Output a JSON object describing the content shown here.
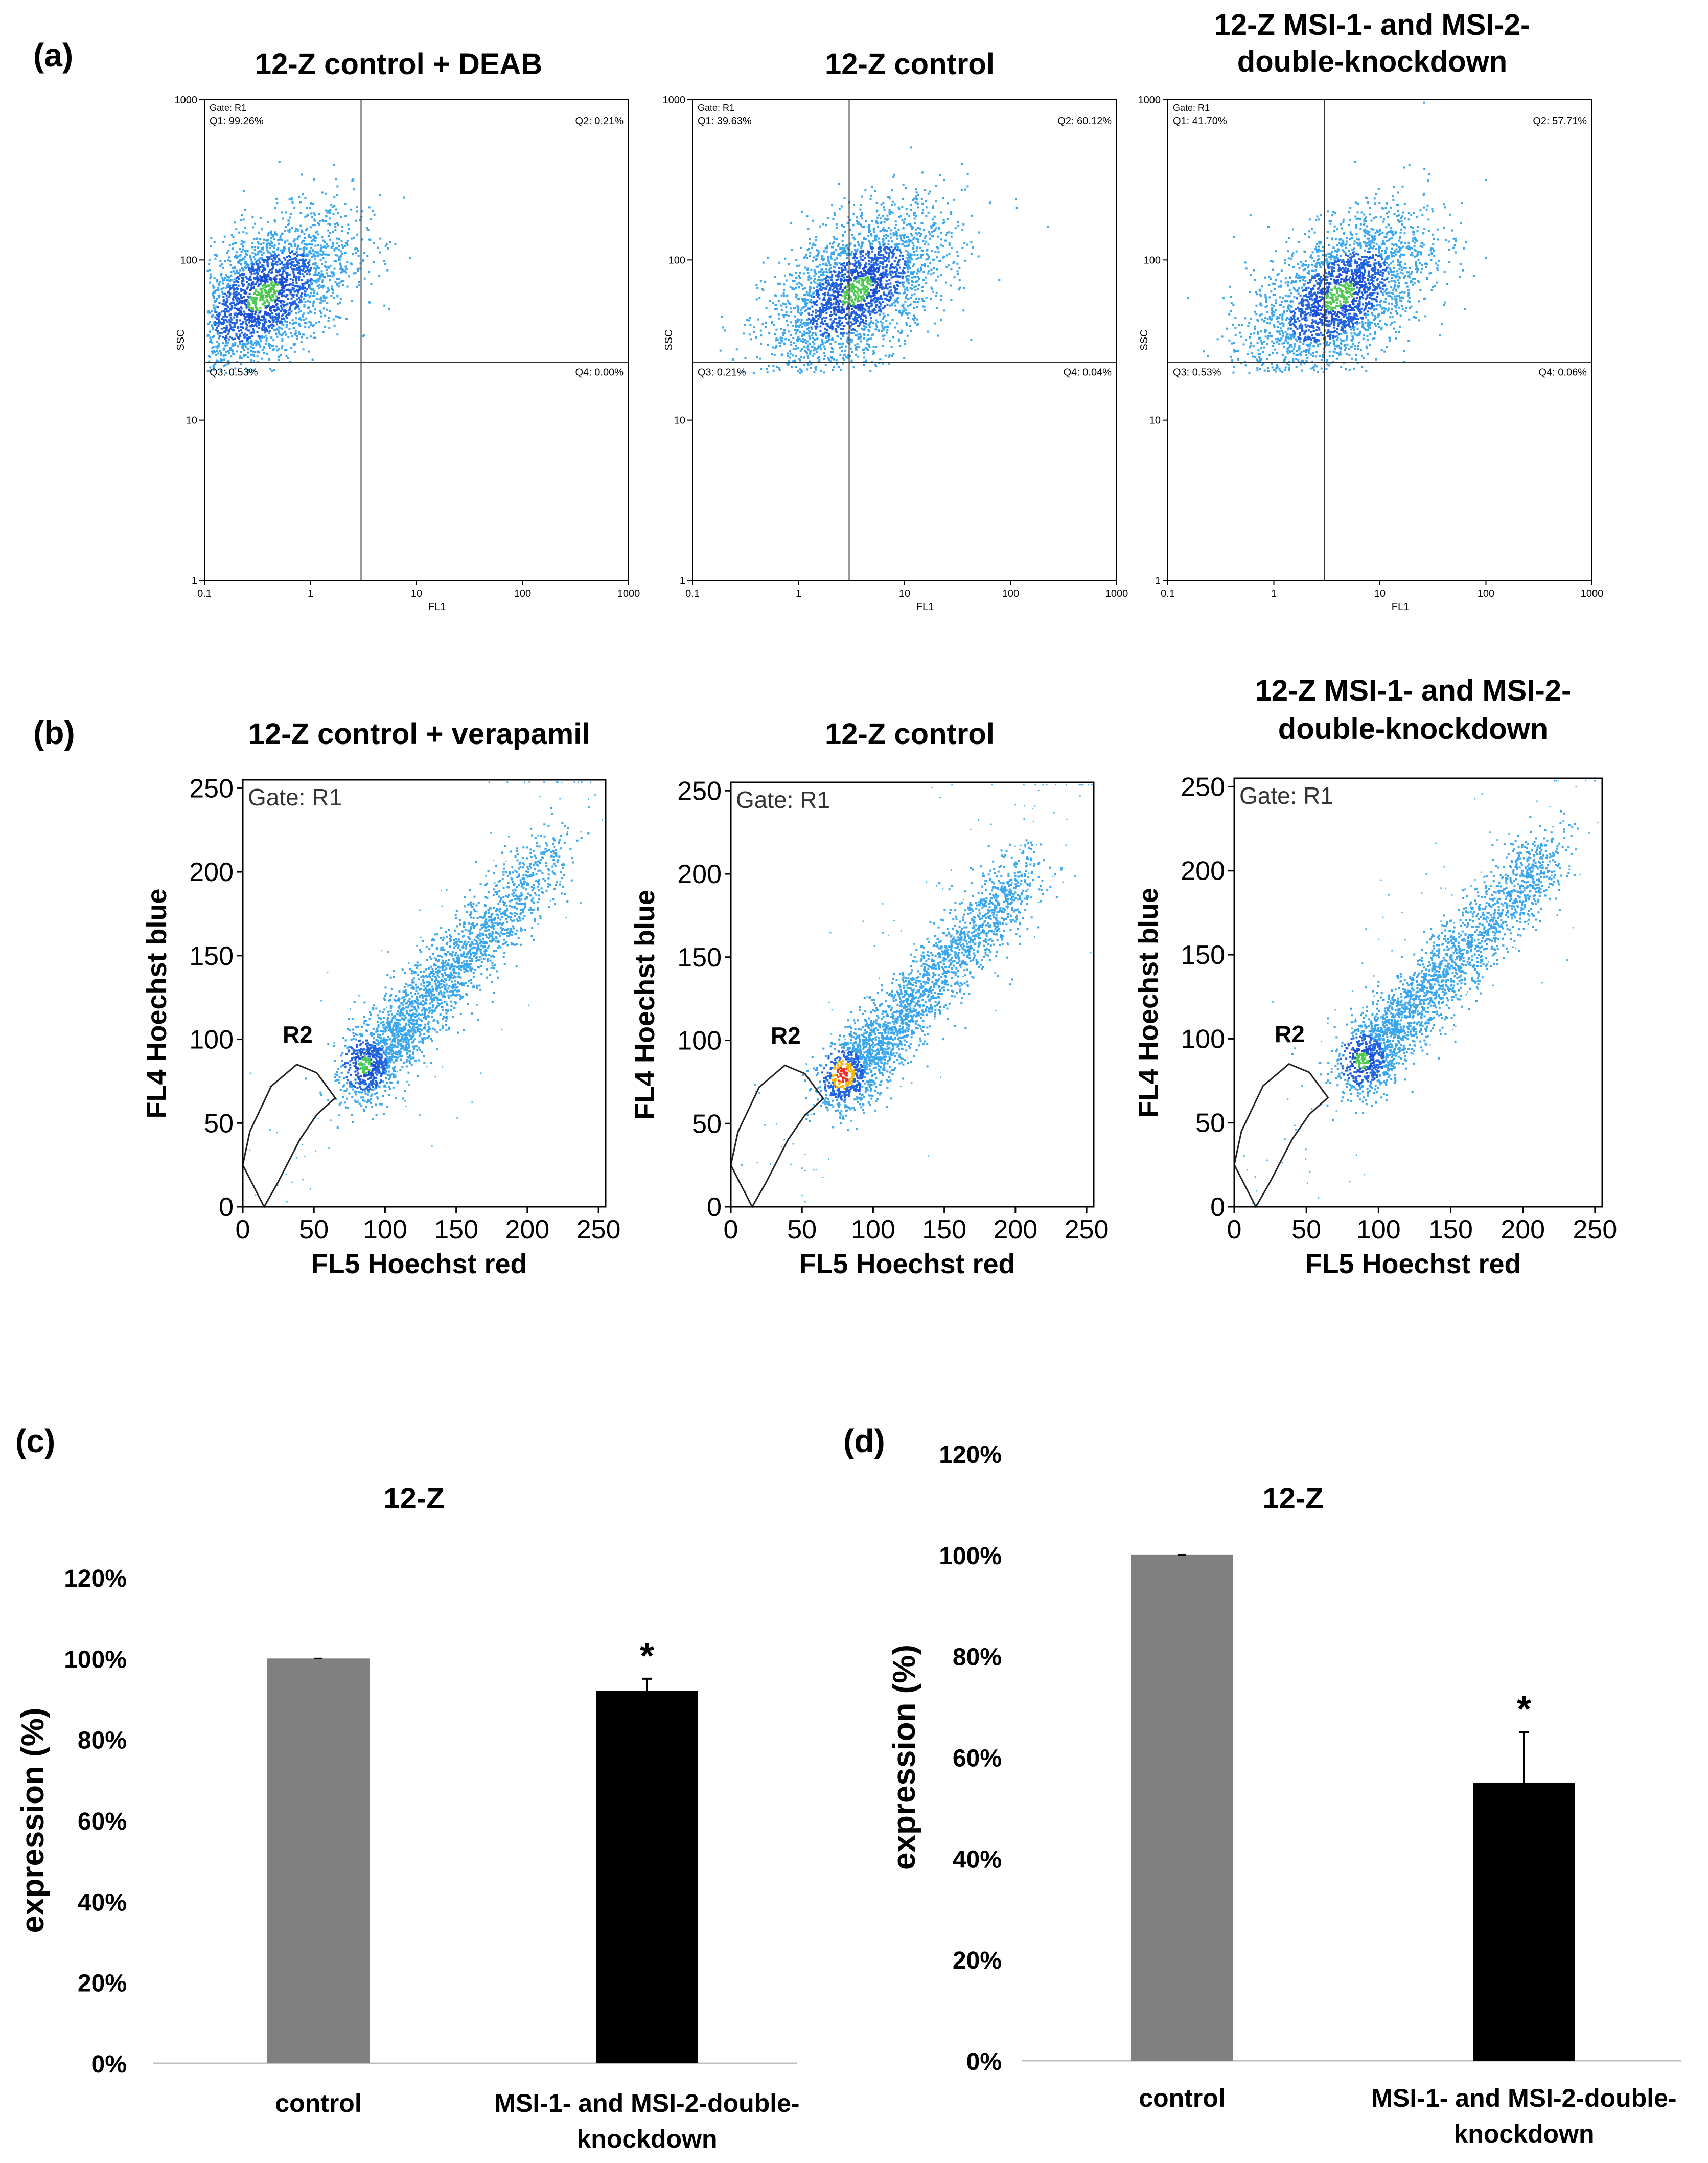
{
  "panel_labels": {
    "a": "(a)",
    "b": "(b)",
    "c": "(c)",
    "d": "(d)"
  },
  "chart_data": [
    {
      "panel": "a",
      "type": "scatter",
      "plots": [
        {
          "title": "12-Z control + DEAB",
          "gate": "Gate: R1",
          "xlabel": "FL1",
          "ylabel": "SSC",
          "xscale": "log",
          "yscale": "log",
          "xlim": [
            0.1,
            1000
          ],
          "ylim": [
            1,
            1000
          ],
          "x_ticks": [
            "0.1",
            "1",
            "10",
            "100",
            "1000"
          ],
          "y_ticks": [
            "1",
            "10",
            "100",
            "1000"
          ],
          "gate_x": 3,
          "gate_y": 23,
          "quadrants": {
            "q1": "Q1: 99.26%",
            "q2": "Q2: 0.21%",
            "q3": "Q3: 0.53%",
            "q4": "Q4: 0.00%"
          },
          "cloud_center": [
            0.35,
            60
          ]
        },
        {
          "title": "12-Z control",
          "gate": "Gate: R1",
          "xlabel": "FL1",
          "ylabel": "SSC",
          "xscale": "log",
          "yscale": "log",
          "xlim": [
            0.1,
            1000
          ],
          "ylim": [
            1,
            1000
          ],
          "x_ticks": [
            "0.1",
            "1",
            "10",
            "100",
            "1000"
          ],
          "y_ticks": [
            "1",
            "10",
            "100",
            "1000"
          ],
          "gate_x": 3,
          "gate_y": 23,
          "quadrants": {
            "q1": "Q1: 39.63%",
            "q2": "Q2: 60.12%",
            "q3": "Q3: 0.21%",
            "q4": "Q4: 0.04%"
          },
          "cloud_center": [
            3.5,
            65
          ]
        },
        {
          "title": "12-Z MSI-1- and MSI-2-double-knockdown",
          "title_lines": [
            "12-Z MSI-1- and MSI-2-",
            "double-knockdown"
          ],
          "gate": "Gate: R1",
          "xlabel": "FL1",
          "ylabel": "SSC",
          "xscale": "log",
          "yscale": "log",
          "xlim": [
            0.1,
            1000
          ],
          "ylim": [
            1,
            1000
          ],
          "x_ticks": [
            "0.1",
            "1",
            "10",
            "100",
            "1000"
          ],
          "y_ticks": [
            "1",
            "10",
            "100",
            "1000"
          ],
          "gate_x": 3,
          "gate_y": 23,
          "quadrants": {
            "q1": "Q1: 41.70%",
            "q2": "Q2: 57.71%",
            "q3": "Q3: 0.53%",
            "q4": "Q4: 0.06%"
          },
          "cloud_center": [
            4,
            60
          ]
        }
      ]
    },
    {
      "panel": "b",
      "type": "scatter",
      "plots": [
        {
          "title": "12-Z control + verapamil",
          "gate": "Gate: R1",
          "region": "R2",
          "xlabel": "FL5  Hoechst red",
          "ylabel": "FL4  Hoechst blue",
          "xlim": [
            0,
            255
          ],
          "ylim": [
            0,
            255
          ],
          "x_ticks": [
            "0",
            "50",
            "100",
            "150",
            "200",
            "250"
          ],
          "y_ticks": [
            "0",
            "50",
            "100",
            "150",
            "200",
            "250"
          ],
          "hotspot": [
            85,
            85
          ],
          "hotspot_level": "green",
          "r2_polygon": [
            [
              0,
              25
            ],
            [
              5,
              45
            ],
            [
              20,
              72
            ],
            [
              38,
              85
            ],
            [
              52,
              80
            ],
            [
              65,
              65
            ],
            [
              52,
              55
            ],
            [
              40,
              40
            ],
            [
              25,
              15
            ],
            [
              15,
              0
            ]
          ]
        },
        {
          "title": "12-Z control",
          "gate": "Gate: R1",
          "region": "R2",
          "xlabel": "FL5  Hoechst red",
          "ylabel": "FL4  Hoechst blue",
          "xlim": [
            0,
            255
          ],
          "ylim": [
            0,
            255
          ],
          "x_ticks": [
            "0",
            "50",
            "100",
            "150",
            "200",
            "250"
          ],
          "y_ticks": [
            "0",
            "50",
            "100",
            "150",
            "200",
            "250"
          ],
          "hotspot": [
            78,
            80
          ],
          "hotspot_level": "red",
          "r2_polygon": [
            [
              0,
              25
            ],
            [
              5,
              45
            ],
            [
              20,
              72
            ],
            [
              38,
              85
            ],
            [
              52,
              80
            ],
            [
              65,
              65
            ],
            [
              52,
              55
            ],
            [
              40,
              40
            ],
            [
              25,
              15
            ],
            [
              15,
              0
            ]
          ]
        },
        {
          "title": "12-Z MSI-1- and MSI-2-double-knockdown",
          "title_lines": [
            "12-Z MSI-1- and MSI-2-",
            "double-knockdown"
          ],
          "gate": "Gate: R1",
          "region": "R2",
          "xlabel": "FL5  Hoechst red",
          "ylabel": "FL4  Hoechst blue",
          "xlim": [
            0,
            255
          ],
          "ylim": [
            0,
            255
          ],
          "x_ticks": [
            "0",
            "50",
            "100",
            "150",
            "200",
            "250"
          ],
          "y_ticks": [
            "0",
            "50",
            "100",
            "150",
            "200",
            "250"
          ],
          "hotspot": [
            88,
            88
          ],
          "hotspot_level": "green",
          "r2_polygon": [
            [
              0,
              25
            ],
            [
              5,
              45
            ],
            [
              20,
              72
            ],
            [
              38,
              85
            ],
            [
              52,
              80
            ],
            [
              65,
              65
            ],
            [
              52,
              55
            ],
            [
              40,
              40
            ],
            [
              25,
              15
            ],
            [
              15,
              0
            ]
          ]
        }
      ]
    },
    {
      "panel": "c",
      "type": "bar",
      "title": "12-Z",
      "ylabel": "expression (%)",
      "xlabel": "",
      "categories": [
        "control",
        "MSI-1- and MSI-2-double-knockdown"
      ],
      "category_lines": [
        [
          "control"
        ],
        [
          "MSI-1- and MSI-2-double-",
          "knockdown"
        ]
      ],
      "values": [
        100,
        92
      ],
      "errors": [
        0,
        3
      ],
      "significance": [
        "",
        "*"
      ],
      "bar_colors": [
        "#808080",
        "#000000"
      ],
      "ylim": [
        0,
        120
      ],
      "y_ticks": [
        "0%",
        "20%",
        "40%",
        "60%",
        "80%",
        "100%",
        "120%"
      ]
    },
    {
      "panel": "d",
      "type": "bar",
      "title": "12-Z",
      "ylabel": "expression (%)",
      "xlabel": "",
      "categories": [
        "control",
        "MSI-1- and MSI-2-double-knockdown"
      ],
      "category_lines": [
        [
          "control"
        ],
        [
          "MSI-1- and MSI-2-double-",
          "knockdown"
        ]
      ],
      "values": [
        100,
        55
      ],
      "errors": [
        0,
        10
      ],
      "significance": [
        "",
        "*"
      ],
      "bar_colors": [
        "#808080",
        "#000000"
      ],
      "ylim": [
        0,
        120
      ],
      "y_ticks": [
        "0%",
        "20%",
        "40%",
        "60%",
        "80%",
        "100%",
        "120%"
      ]
    }
  ]
}
